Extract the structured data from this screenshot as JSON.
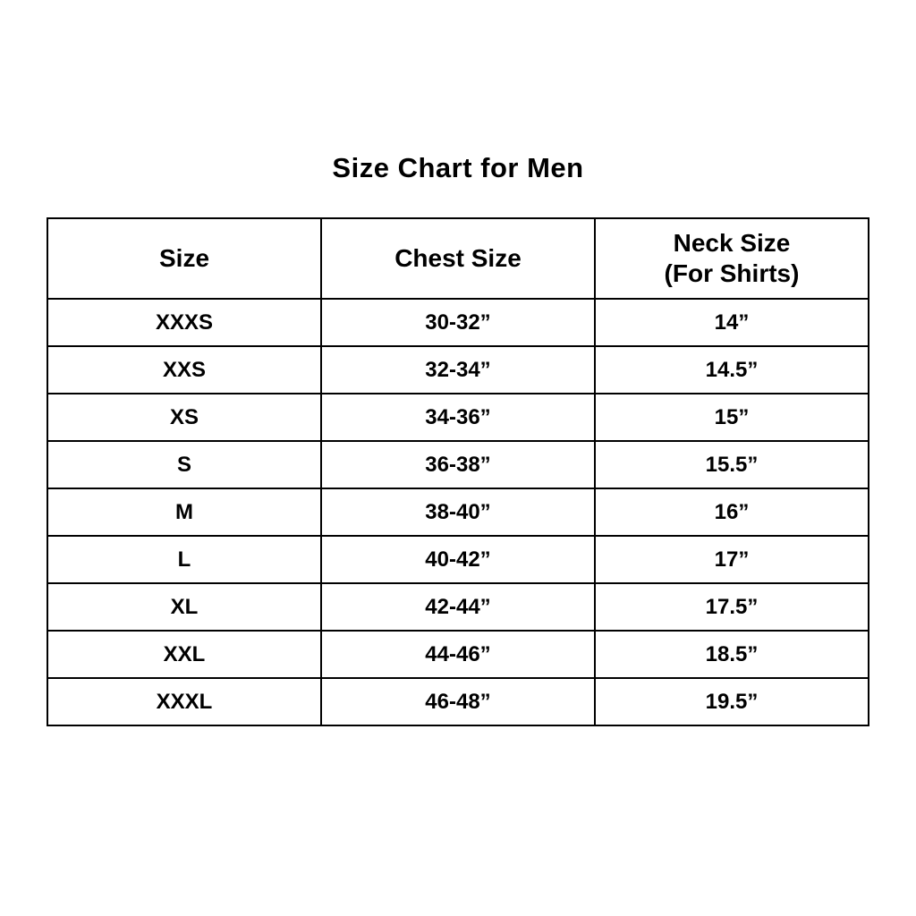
{
  "title": "Size Chart for Men",
  "chart_data": {
    "type": "table",
    "title": "Size Chart for Men",
    "columns": [
      {
        "label": "Size",
        "sublabel": ""
      },
      {
        "label": "Chest Size",
        "sublabel": ""
      },
      {
        "label": "Neck Size",
        "sublabel": "(For Shirts)"
      }
    ],
    "rows": [
      {
        "size": "XXXS",
        "chest": "30-32”",
        "neck": "14”"
      },
      {
        "size": "XXS",
        "chest": "32-34”",
        "neck": "14.5”"
      },
      {
        "size": "XS",
        "chest": "34-36”",
        "neck": "15”"
      },
      {
        "size": "S",
        "chest": "36-38”",
        "neck": "15.5”"
      },
      {
        "size": "M",
        "chest": "38-40”",
        "neck": "16”"
      },
      {
        "size": "L",
        "chest": "40-42”",
        "neck": "17”"
      },
      {
        "size": "XL",
        "chest": "42-44”",
        "neck": "17.5”"
      },
      {
        "size": "XXL",
        "chest": "44-46”",
        "neck": "18.5”"
      },
      {
        "size": "XXXL",
        "chest": "46-48”",
        "neck": "19.5”"
      }
    ],
    "text_color": "#000000",
    "border_color": "#000000",
    "background_color": "#ffffff"
  }
}
